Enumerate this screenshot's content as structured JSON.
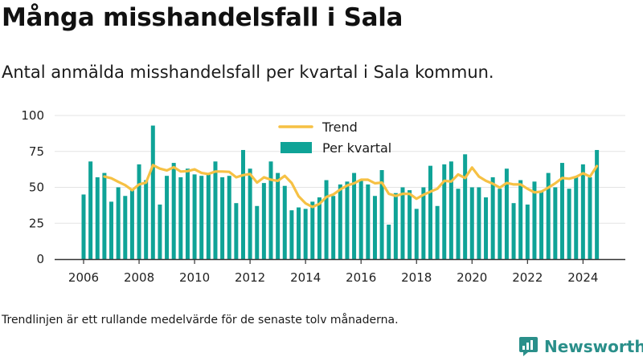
{
  "header": {
    "title": "Många misshandelsfall i Sala",
    "subtitle": "Antal anmälda misshandelsfall per kvartal i Sala kommun."
  },
  "footnote": "Trendlinjen är ett rullande medelvärde för de senaste tolv månaderna.",
  "brand": {
    "name": "Newsworthy",
    "icon": "newsworthy-logo-icon",
    "color": "#2a8f8a"
  },
  "colors": {
    "bars": "#0fa397",
    "trend": "#f6c144",
    "axis": "#333333",
    "grid": "#e3e3e3"
  },
  "chart_data": {
    "type": "bar",
    "title": "Många misshandelsfall i Sala",
    "xlabel": "",
    "ylabel": "",
    "ylim": [
      0,
      100
    ],
    "yticks": [
      0,
      25,
      50,
      75,
      100
    ],
    "xticks": [
      "2006",
      "2008",
      "2010",
      "2012",
      "2014",
      "2016",
      "2018",
      "2020",
      "2022",
      "2024"
    ],
    "grid": true,
    "legend_position": "top",
    "start_period": "2006 Q1",
    "series": [
      {
        "name": "Per kvartal",
        "type": "bar",
        "values": [
          45,
          68,
          57,
          60,
          40,
          50,
          44,
          48,
          66,
          55,
          93,
          38,
          58,
          67,
          57,
          63,
          59,
          58,
          60,
          68,
          57,
          58,
          39,
          76,
          63,
          37,
          53,
          68,
          60,
          51,
          34,
          36,
          35,
          40,
          43,
          55,
          44,
          52,
          54,
          60,
          55,
          52,
          44,
          62,
          24,
          46,
          50,
          48,
          35,
          50,
          65,
          37,
          66,
          68,
          49,
          73,
          50,
          50,
          43,
          57,
          49,
          63,
          39,
          55,
          38,
          54,
          47,
          60,
          50,
          67,
          49,
          57,
          66,
          57,
          76
        ]
      },
      {
        "name": "Trend",
        "type": "line",
        "values": [
          null,
          null,
          null,
          57.5,
          56.3,
          53.8,
          51.5,
          48,
          52,
          53.3,
          65.5,
          63,
          61.8,
          64,
          61,
          61.3,
          62.5,
          60,
          59.3,
          61,
          61,
          60.8,
          57,
          58.5,
          59.3,
          53.3,
          57,
          55.3,
          54.5,
          58,
          53,
          43.8,
          38.8,
          36.3,
          38.5,
          43.3,
          45,
          48.5,
          51.3,
          52.8,
          55.3,
          55.3,
          52.8,
          53.3,
          45.5,
          44,
          45.5,
          45.5,
          42,
          44.8,
          47,
          49,
          54.5,
          54,
          59,
          56.5,
          63.8,
          57.5,
          54.5,
          52.5,
          49.8,
          53,
          52,
          52,
          49,
          46.5,
          47,
          49.8,
          52.8,
          56.5,
          56,
          57.3,
          59.8,
          57.5,
          64.8
        ]
      }
    ]
  }
}
